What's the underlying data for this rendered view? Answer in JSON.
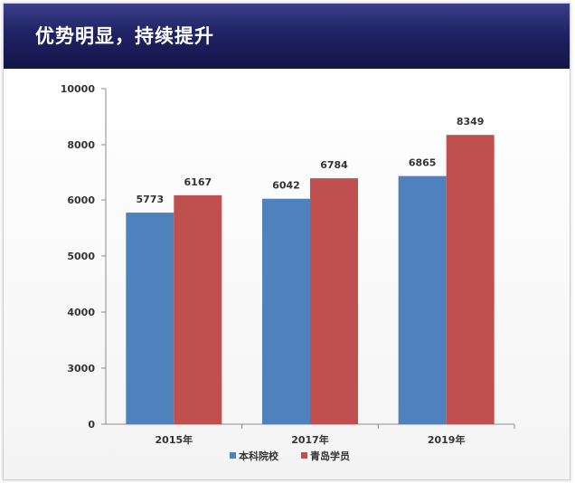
{
  "header": {
    "title": "优势明显，持续提升"
  },
  "chart_data": {
    "type": "bar",
    "title": "",
    "xlabel": "",
    "ylabel": "",
    "categories": [
      "2015年",
      "2017年",
      "2019年"
    ],
    "series": [
      {
        "name": "本科院校",
        "values": [
          5773,
          6042,
          6865
        ]
      },
      {
        "name": "青岛学员",
        "values": [
          6167,
          6784,
          8349
        ]
      }
    ],
    "y_ticks": [
      0,
      3000,
      4000,
      5000,
      6000,
      8000,
      10000
    ],
    "y_tick_labels": [
      "0",
      "3000",
      "4000",
      "5000",
      "6000",
      "8000",
      "10000"
    ],
    "colors": [
      "#4f81bd",
      "#c0504d"
    ],
    "legend_position": "bottom",
    "grid": false
  }
}
